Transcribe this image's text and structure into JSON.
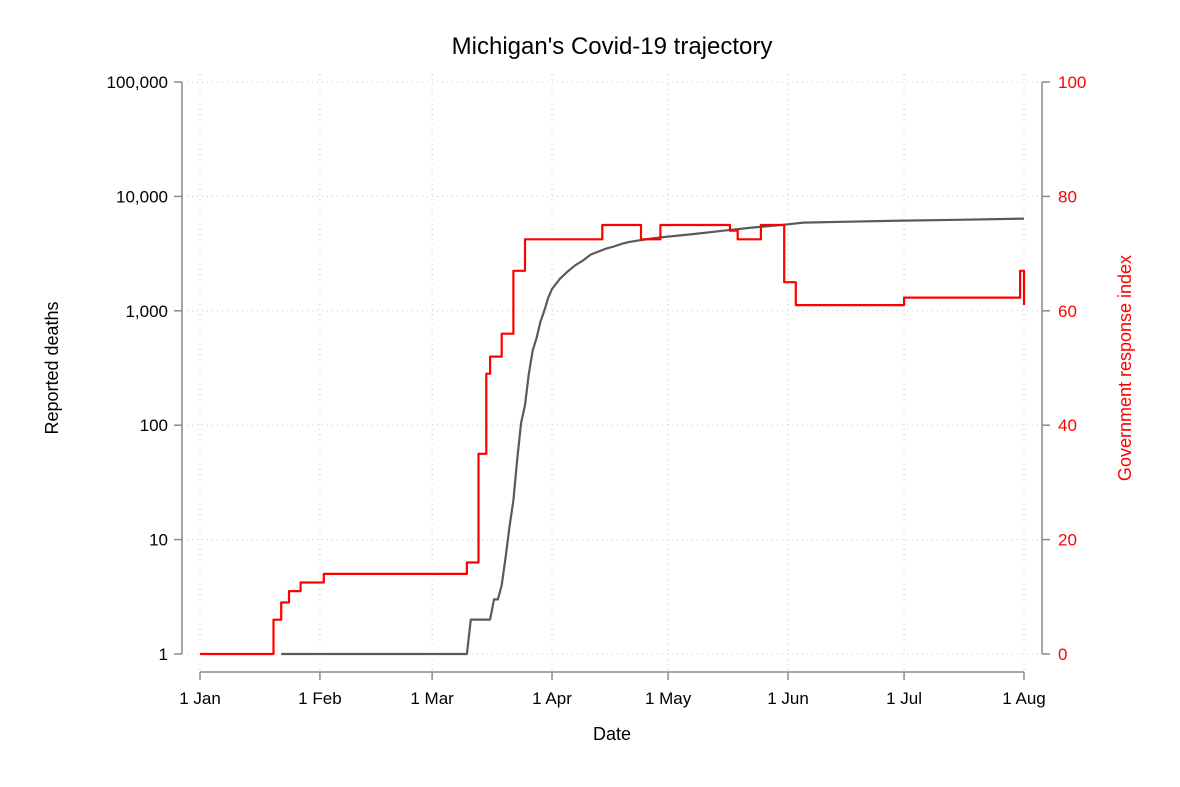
{
  "chart_data": {
    "type": "line",
    "title": "Michigan's Covid-19 trajectory",
    "xlabel": "Date",
    "ylabel_left": "Reported deaths",
    "ylabel_right": "Government response index",
    "grid": true,
    "x_ticks": [
      "1 Jan",
      "1 Feb",
      "1 Mar",
      "1 Apr",
      "1 May",
      "1 Jun",
      "1 Jul",
      "1 Aug"
    ],
    "x_tick_dates": [
      "2020-01-01",
      "2020-02-01",
      "2020-03-01",
      "2020-04-01",
      "2020-05-01",
      "2020-06-01",
      "2020-07-01",
      "2020-08-01"
    ],
    "xlim": [
      "2020-01-01",
      "2020-08-01"
    ],
    "left_axis": {
      "scale": "log",
      "ylim": [
        1,
        100000
      ],
      "ticks": [
        1,
        10,
        100,
        1000,
        10000,
        100000
      ],
      "tick_labels": [
        "1",
        "10",
        "100",
        "1,000",
        "10,000",
        "100,000"
      ],
      "color": "#000000"
    },
    "right_axis": {
      "scale": "linear",
      "ylim": [
        0,
        100
      ],
      "ticks": [
        0,
        20,
        40,
        60,
        80,
        100
      ],
      "tick_labels": [
        "0",
        "20",
        "40",
        "60",
        "80",
        "100"
      ],
      "color": "#ff0000"
    },
    "series": [
      {
        "axis": "left",
        "color": "#5a5a5a",
        "x": [
          "2020-01-22",
          "2020-03-10",
          "2020-03-11",
          "2020-03-16",
          "2020-03-17",
          "2020-03-18",
          "2020-03-19",
          "2020-03-20",
          "2020-03-21",
          "2020-03-22",
          "2020-03-23",
          "2020-03-24",
          "2020-03-25",
          "2020-03-26",
          "2020-03-27",
          "2020-03-28",
          "2020-03-29",
          "2020-03-30",
          "2020-03-31",
          "2020-04-01",
          "2020-04-03",
          "2020-04-05",
          "2020-04-07",
          "2020-04-09",
          "2020-04-11",
          "2020-04-13",
          "2020-04-15",
          "2020-04-17",
          "2020-04-19",
          "2020-04-21",
          "2020-04-23",
          "2020-04-25",
          "2020-04-27",
          "2020-05-01",
          "2020-05-08",
          "2020-05-15",
          "2020-05-22",
          "2020-06-01",
          "2020-06-05",
          "2020-06-15",
          "2020-07-01",
          "2020-07-15",
          "2020-08-01"
        ],
        "y": [
          1,
          1,
          2,
          2,
          3,
          3,
          4,
          7,
          13,
          22,
          50,
          105,
          150,
          280,
          450,
          580,
          800,
          1000,
          1300,
          1550,
          1900,
          2200,
          2500,
          2750,
          3100,
          3300,
          3500,
          3650,
          3850,
          4000,
          4100,
          4200,
          4300,
          4450,
          4700,
          5000,
          5300,
          5700,
          5900,
          6000,
          6150,
          6250,
          6400
        ]
      },
      {
        "axis": "right",
        "color": "#ff0000",
        "step": true,
        "x": [
          "2020-01-01",
          "2020-01-20",
          "2020-01-22",
          "2020-01-24",
          "2020-01-27",
          "2020-02-02",
          "2020-03-01",
          "2020-03-10",
          "2020-03-11",
          "2020-03-13",
          "2020-03-14",
          "2020-03-15",
          "2020-03-16",
          "2020-03-19",
          "2020-03-22",
          "2020-03-25",
          "2020-03-26",
          "2020-04-14",
          "2020-04-24",
          "2020-04-29",
          "2020-05-17",
          "2020-05-19",
          "2020-05-25",
          "2020-05-31",
          "2020-06-03",
          "2020-07-01",
          "2020-07-31",
          "2020-08-01"
        ],
        "y": [
          0,
          6,
          9,
          11,
          12.5,
          14,
          14,
          16,
          16,
          35,
          35,
          49,
          52,
          56,
          67,
          72.5,
          72.5,
          75,
          72.5,
          75,
          74,
          72.5,
          75,
          65,
          61,
          62.3,
          67,
          61
        ]
      }
    ]
  }
}
